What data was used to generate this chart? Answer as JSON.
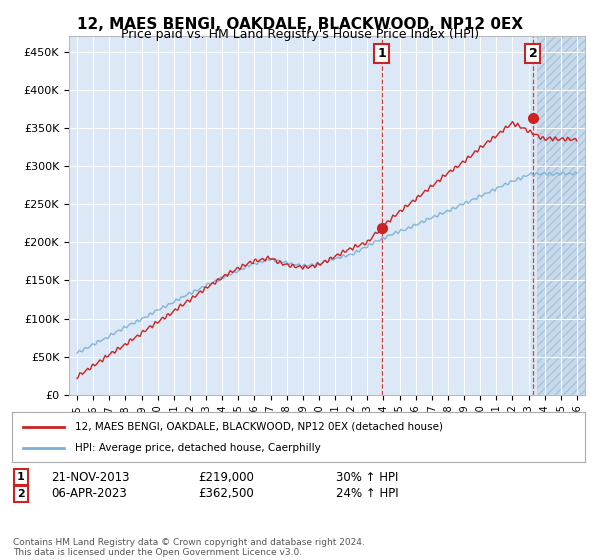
{
  "title": "12, MAES BENGI, OAKDALE, BLACKWOOD, NP12 0EX",
  "subtitle": "Price paid vs. HM Land Registry's House Price Index (HPI)",
  "legend_line1": "12, MAES BENGI, OAKDALE, BLACKWOOD, NP12 0EX (detached house)",
  "legend_line2": "HPI: Average price, detached house, Caerphilly",
  "annotation1_label": "1",
  "annotation1_date": "21-NOV-2013",
  "annotation1_price": "£219,000",
  "annotation1_hpi": "30% ↑ HPI",
  "annotation2_label": "2",
  "annotation2_date": "06-APR-2023",
  "annotation2_price": "£362,500",
  "annotation2_hpi": "24% ↑ HPI",
  "footer": "Contains HM Land Registry data © Crown copyright and database right 2024.\nThis data is licensed under the Open Government Licence v3.0.",
  "hpi_color": "#7bafd4",
  "price_color": "#cc2222",
  "sale1_x": 2013.9,
  "sale1_y": 219000,
  "sale2_x": 2023.27,
  "sale2_y": 362500,
  "ylim": [
    0,
    470000
  ],
  "xlim_start": 1994.5,
  "xlim_end": 2026.5,
  "yticks": [
    0,
    50000,
    100000,
    150000,
    200000,
    250000,
    300000,
    350000,
    400000,
    450000
  ],
  "ytick_labels": [
    "£0",
    "£50K",
    "£100K",
    "£150K",
    "£200K",
    "£250K",
    "£300K",
    "£350K",
    "£400K",
    "£450K"
  ],
  "xtick_years": [
    1995,
    1996,
    1997,
    1998,
    1999,
    2000,
    2001,
    2002,
    2003,
    2004,
    2005,
    2006,
    2007,
    2008,
    2009,
    2010,
    2011,
    2012,
    2013,
    2014,
    2015,
    2016,
    2017,
    2018,
    2019,
    2020,
    2021,
    2022,
    2023,
    2024,
    2025,
    2026
  ],
  "background_color": "#dce8f5",
  "hatch_start": 2023.5
}
